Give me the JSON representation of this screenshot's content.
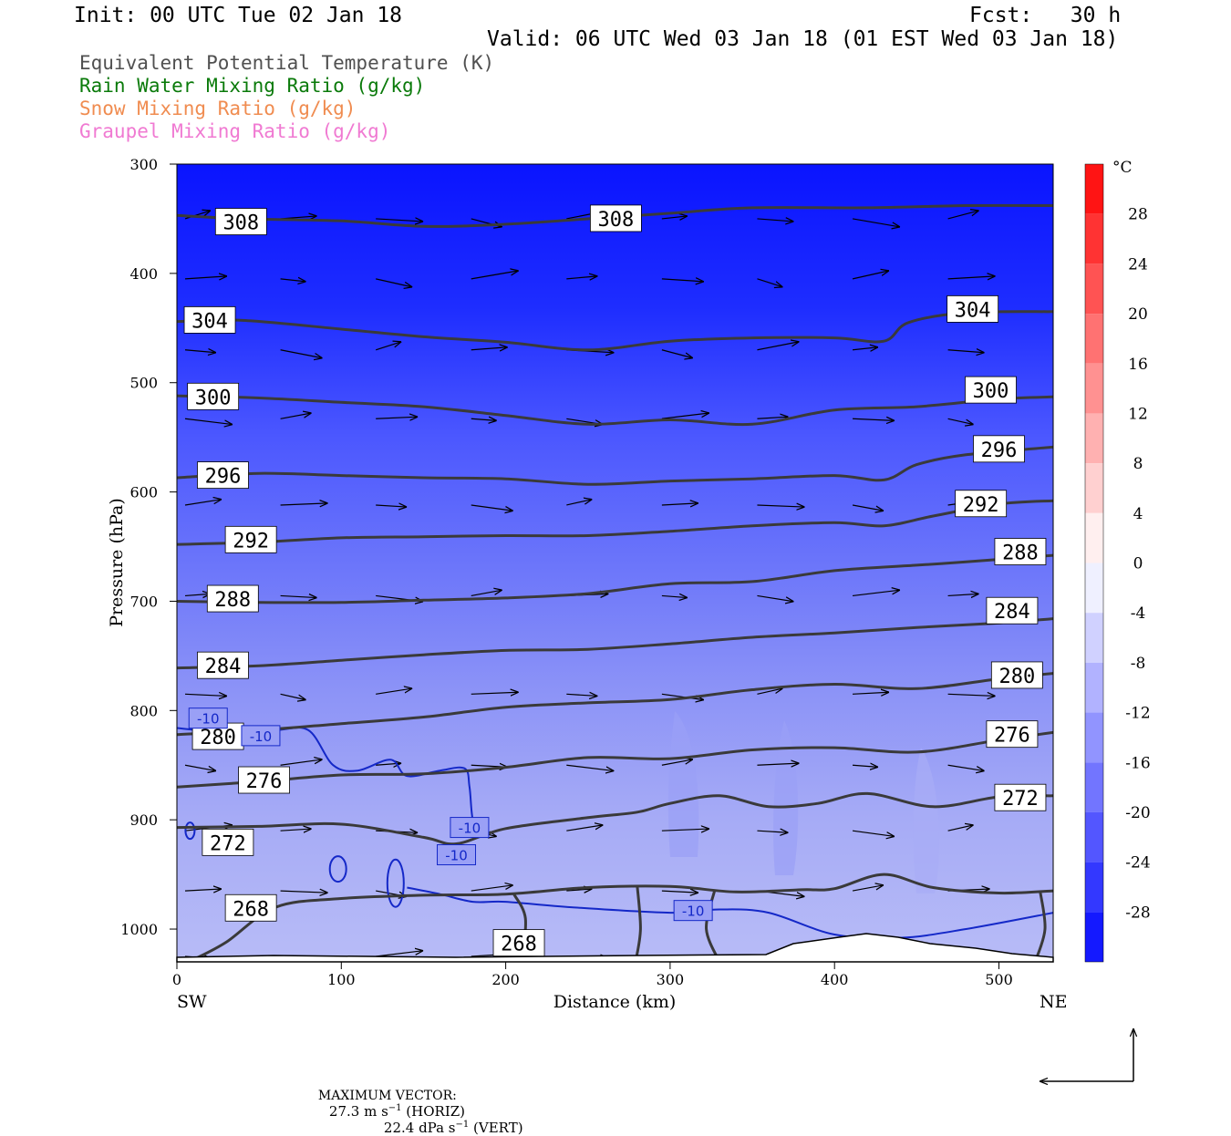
{
  "header": {
    "init": "Init: 00 UTC Tue 02 Jan 18",
    "fcst": "Fcst:   30 h",
    "valid": "Valid: 06 UTC Wed 03 Jan 18 (01 EST Wed 03 Jan 18)"
  },
  "fields": [
    {
      "label": "Equivalent Potential Temperature (K)",
      "color": "#505050"
    },
    {
      "label": "Rain Water Mixing Ratio (g/kg)",
      "color": "#0a7a0a"
    },
    {
      "label": "Snow Mixing Ratio (g/kg)",
      "color": "#f08c50"
    },
    {
      "label": "Graupel Mixing Ratio (g/kg)",
      "color": "#f07ad2"
    }
  ],
  "chart_data": {
    "type": "cross-section",
    "xlabel": "Distance (km)",
    "ylabel": "Pressure (hPa)",
    "x_ticks": [
      0,
      100,
      200,
      300,
      400,
      500
    ],
    "xlim": [
      0,
      533
    ],
    "y_ticks": [
      300,
      400,
      500,
      600,
      700,
      800,
      900,
      1000
    ],
    "ylim": [
      300,
      1030
    ],
    "y_scale": "linear-inverted",
    "left_end_label": "SW",
    "right_end_label": "NE",
    "colorbar": {
      "unit": "°C",
      "labels": [
        "28",
        "24",
        "20",
        "16",
        "12",
        "8",
        "4",
        "0",
        "-4",
        "-8",
        "-12",
        "-16",
        "-20",
        "-24",
        "-28"
      ],
      "temps": [
        28,
        24,
        20,
        16,
        12,
        8,
        4,
        0,
        -4,
        -8,
        -12,
        -16,
        -20,
        -24,
        -28
      ],
      "range": [
        -32,
        32
      ]
    },
    "theta_e_contours": [
      {
        "value": 308,
        "points": [
          [
            0,
            347
          ],
          [
            40,
            350
          ],
          [
            100,
            352
          ],
          [
            150,
            357
          ],
          [
            200,
            355
          ],
          [
            260,
            349
          ],
          [
            300,
            345
          ],
          [
            350,
            340
          ],
          [
            420,
            340
          ],
          [
            480,
            338
          ],
          [
            533,
            338
          ]
        ]
      },
      {
        "value": 304,
        "points": [
          [
            0,
            444
          ],
          [
            40,
            443
          ],
          [
            100,
            451
          ],
          [
            150,
            458
          ],
          [
            200,
            463
          ],
          [
            250,
            470
          ],
          [
            300,
            462
          ],
          [
            350,
            459
          ],
          [
            400,
            459
          ],
          [
            430,
            462
          ],
          [
            445,
            445
          ],
          [
            480,
            436
          ],
          [
            533,
            435
          ]
        ]
      },
      {
        "value": 300,
        "points": [
          [
            0,
            512
          ],
          [
            50,
            514
          ],
          [
            100,
            518
          ],
          [
            150,
            522
          ],
          [
            200,
            530
          ],
          [
            250,
            538
          ],
          [
            300,
            534
          ],
          [
            350,
            538
          ],
          [
            400,
            525
          ],
          [
            450,
            522
          ],
          [
            500,
            515
          ],
          [
            533,
            513
          ]
        ]
      },
      {
        "value": 296,
        "points": [
          [
            0,
            587
          ],
          [
            50,
            583
          ],
          [
            100,
            585
          ],
          [
            150,
            587
          ],
          [
            200,
            588
          ],
          [
            250,
            593
          ],
          [
            300,
            590
          ],
          [
            350,
            588
          ],
          [
            400,
            585
          ],
          [
            430,
            589
          ],
          [
            450,
            575
          ],
          [
            480,
            566
          ],
          [
            533,
            559
          ]
        ]
      },
      {
        "value": 292,
        "points": [
          [
            0,
            648
          ],
          [
            50,
            646
          ],
          [
            100,
            642
          ],
          [
            150,
            641
          ],
          [
            200,
            640
          ],
          [
            250,
            640
          ],
          [
            300,
            636
          ],
          [
            350,
            631
          ],
          [
            400,
            628
          ],
          [
            430,
            631
          ],
          [
            460,
            622
          ],
          [
            500,
            611
          ],
          [
            533,
            608
          ]
        ]
      },
      {
        "value": 288,
        "points": [
          [
            0,
            700
          ],
          [
            50,
            701
          ],
          [
            100,
            701
          ],
          [
            150,
            699
          ],
          [
            200,
            697
          ],
          [
            250,
            693
          ],
          [
            300,
            684
          ],
          [
            350,
            682
          ],
          [
            400,
            672
          ],
          [
            450,
            667
          ],
          [
            480,
            664
          ],
          [
            533,
            658
          ]
        ]
      },
      {
        "value": 284,
        "points": [
          [
            0,
            761
          ],
          [
            50,
            759
          ],
          [
            100,
            754
          ],
          [
            150,
            749
          ],
          [
            200,
            745
          ],
          [
            250,
            744
          ],
          [
            300,
            739
          ],
          [
            350,
            733
          ],
          [
            400,
            729
          ],
          [
            450,
            724
          ],
          [
            500,
            720
          ],
          [
            533,
            716
          ]
        ]
      },
      {
        "value": 280,
        "points": [
          [
            0,
            822
          ],
          [
            50,
            818
          ],
          [
            100,
            812
          ],
          [
            150,
            806
          ],
          [
            200,
            797
          ],
          [
            250,
            793
          ],
          [
            300,
            790
          ],
          [
            350,
            781
          ],
          [
            400,
            776
          ],
          [
            450,
            780
          ],
          [
            500,
            771
          ],
          [
            533,
            766
          ]
        ]
      },
      {
        "value": 276,
        "points": [
          [
            0,
            870
          ],
          [
            50,
            865
          ],
          [
            100,
            859
          ],
          [
            150,
            858
          ],
          [
            200,
            852
          ],
          [
            250,
            843
          ],
          [
            300,
            844
          ],
          [
            350,
            836
          ],
          [
            400,
            834
          ],
          [
            450,
            838
          ],
          [
            500,
            827
          ],
          [
            533,
            820
          ]
        ]
      },
      {
        "value": 272,
        "points": [
          [
            0,
            907
          ],
          [
            50,
            906
          ],
          [
            100,
            904
          ],
          [
            150,
            916
          ],
          [
            170,
            922
          ],
          [
            200,
            908
          ],
          [
            250,
            898
          ],
          [
            280,
            893
          ],
          [
            300,
            885
          ],
          [
            330,
            878
          ],
          [
            360,
            888
          ],
          [
            390,
            885
          ],
          [
            420,
            876
          ],
          [
            460,
            888
          ],
          [
            500,
            879
          ],
          [
            533,
            878
          ]
        ]
      },
      {
        "value": 268,
        "points": [
          [
            10,
            1028
          ],
          [
            30,
            1012
          ],
          [
            60,
            980
          ],
          [
            100,
            972
          ],
          [
            150,
            969
          ],
          [
            200,
            968
          ],
          [
            250,
            962
          ],
          [
            300,
            961
          ],
          [
            340,
            966
          ],
          [
            380,
            964
          ],
          [
            400,
            963
          ],
          [
            430,
            950
          ],
          [
            460,
            962
          ],
          [
            500,
            967
          ],
          [
            533,
            965
          ]
        ]
      }
    ],
    "contour_labels": [
      {
        "text": "308",
        "x": 39,
        "p": 353
      },
      {
        "text": "308",
        "x": 267,
        "p": 350
      },
      {
        "text": "304",
        "x": 20,
        "p": 443
      },
      {
        "text": "304",
        "x": 484,
        "p": 433
      },
      {
        "text": "300",
        "x": 22,
        "p": 513
      },
      {
        "text": "300",
        "x": 495,
        "p": 507
      },
      {
        "text": "296",
        "x": 28,
        "p": 585
      },
      {
        "text": "296",
        "x": 500,
        "p": 561
      },
      {
        "text": "292",
        "x": 45,
        "p": 644
      },
      {
        "text": "292",
        "x": 489,
        "p": 611
      },
      {
        "text": "288",
        "x": 34,
        "p": 698
      },
      {
        "text": "288",
        "x": 513,
        "p": 655
      },
      {
        "text": "284",
        "x": 28,
        "p": 759
      },
      {
        "text": "284",
        "x": 508,
        "p": 709
      },
      {
        "text": "280",
        "x": 25,
        "p": 824
      },
      {
        "text": "280",
        "x": 511,
        "p": 768
      },
      {
        "text": "276",
        "x": 53,
        "p": 864
      },
      {
        "text": "276",
        "x": 508,
        "p": 822
      },
      {
        "text": "272",
        "x": 31,
        "p": 921
      },
      {
        "text": "272",
        "x": 513,
        "p": 880
      },
      {
        "text": "268",
        "x": 45,
        "p": 981
      },
      {
        "text": "268",
        "x": 208,
        "p": 1013
      }
    ],
    "temp_contour_labels": [
      {
        "text": "-10",
        "x": 19,
        "p": 807
      },
      {
        "text": "-10",
        "x": 51,
        "p": 823
      },
      {
        "text": "-10",
        "x": 178,
        "p": 907
      },
      {
        "text": "-10",
        "x": 170,
        "p": 932
      },
      {
        "text": "-10",
        "x": 314,
        "p": 983
      }
    ],
    "footer": {
      "title": "MAXIMUM VECTOR:",
      "horiz": "27.3 m s",
      "horiz_unit": "(HORIZ)",
      "vert": "22.4 dPa s",
      "vert_unit": "(VERT)",
      "exp": "−1"
    }
  }
}
